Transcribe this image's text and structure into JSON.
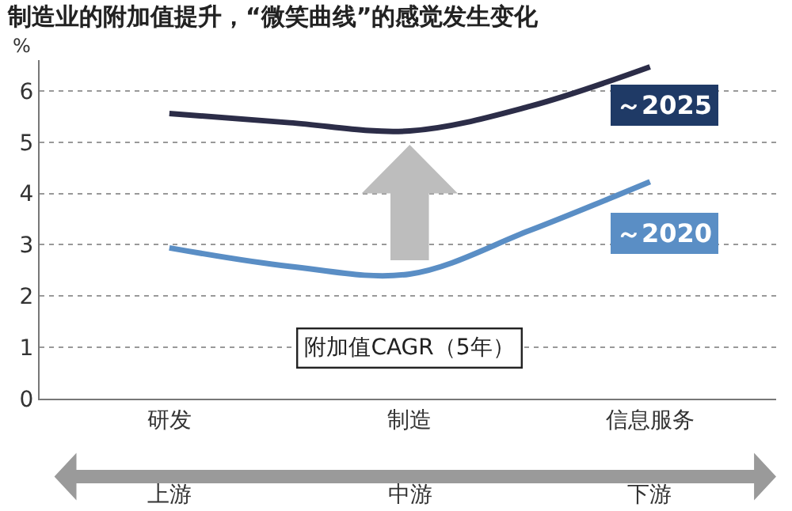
{
  "chart_data": {
    "type": "line",
    "title": "制造业的附加值提升，“微笑曲线”的感觉发生变化",
    "ylabel": "%",
    "categories": [
      "研发",
      null,
      "制造",
      null,
      "信息服务"
    ],
    "ylim": [
      0,
      6.6
    ],
    "yticks": [
      0,
      1,
      2,
      3,
      4,
      5,
      6
    ],
    "grid": "y",
    "legend": false,
    "marker": "none",
    "line_style": "solid",
    "series": [
      {
        "name": "～2025",
        "color": "#2c2d48",
        "values": [
          5.56,
          5.38,
          5.22,
          5.7,
          6.47
        ]
      },
      {
        "name": "～2020",
        "color": "#5a8ec5",
        "values": [
          2.94,
          2.58,
          2.43,
          3.28,
          4.23
        ]
      }
    ],
    "annotations": [
      "附加值CAGR（5年）",
      "上游",
      "中游",
      "下游"
    ]
  }
}
